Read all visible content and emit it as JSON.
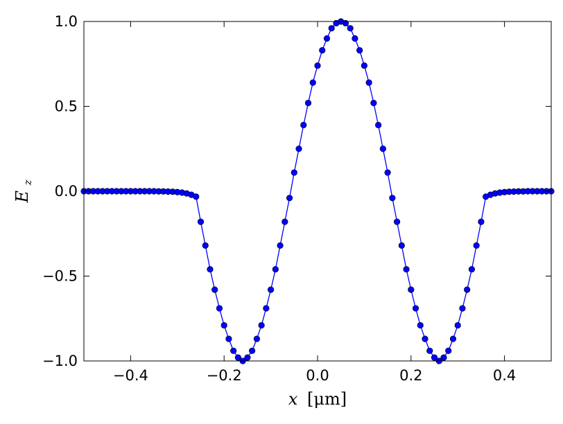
{
  "chart_data": {
    "type": "line",
    "xlabel": "x [μm]",
    "xlabel_var": "x",
    "xlabel_unit": "[μm]",
    "ylabel": "Ez",
    "ylabel_main": "E",
    "ylabel_sub": "z",
    "xlim": [
      -0.5,
      0.5
    ],
    "ylim": [
      -1.0,
      1.0
    ],
    "x_ticks": [
      -0.4,
      -0.2,
      0.0,
      0.2,
      0.4
    ],
    "x_tick_labels": [
      "−0.4",
      "−0.2",
      "0.0",
      "0.2",
      "0.4"
    ],
    "y_ticks": [
      -1.0,
      -0.5,
      0.0,
      0.5,
      1.0
    ],
    "y_tick_labels": [
      "−1.0",
      "−0.5",
      "0.0",
      "0.5",
      "1.0"
    ],
    "grid": false,
    "legend": false,
    "series": [
      {
        "color": "#0000ff",
        "marker": "circle",
        "x": [
          -0.5,
          -0.49,
          -0.48,
          -0.47,
          -0.46,
          -0.45,
          -0.44,
          -0.43,
          -0.42,
          -0.41,
          -0.4,
          -0.39,
          -0.38,
          -0.37,
          -0.36,
          -0.35,
          -0.34,
          -0.33,
          -0.32,
          -0.31,
          -0.3,
          -0.29,
          -0.28,
          -0.27,
          -0.26,
          -0.25,
          -0.24,
          -0.23,
          -0.22,
          -0.21,
          -0.2,
          -0.19,
          -0.18,
          -0.17,
          -0.16,
          -0.15,
          -0.14,
          -0.13,
          -0.12,
          -0.11,
          -0.1,
          -0.09,
          -0.08,
          -0.07,
          -0.06,
          -0.05,
          -0.04,
          -0.03,
          -0.02,
          -0.01,
          0.0,
          0.01,
          0.02,
          0.03,
          0.04,
          0.05,
          0.06,
          0.07,
          0.08,
          0.09,
          0.1,
          0.11,
          0.12,
          0.13,
          0.14,
          0.15,
          0.16,
          0.17,
          0.18,
          0.19,
          0.2,
          0.21,
          0.22,
          0.23,
          0.24,
          0.25,
          0.26,
          0.27,
          0.28,
          0.29,
          0.3,
          0.31,
          0.32,
          0.33,
          0.34,
          0.35,
          0.36,
          0.37,
          0.38,
          0.39,
          0.4,
          0.41,
          0.42,
          0.43,
          0.44,
          0.45,
          0.46,
          0.47,
          0.48,
          0.49,
          0.5
        ],
        "y": [
          0.0,
          0.0,
          0.0,
          0.0,
          0.0,
          0.0,
          0.0,
          0.0,
          0.0,
          0.0,
          0.0,
          0.0,
          0.0,
          0.0,
          0.0,
          0.0,
          -0.001,
          -0.001,
          -0.002,
          -0.003,
          -0.005,
          -0.008,
          -0.013,
          -0.021,
          -0.032,
          -0.18,
          -0.32,
          -0.46,
          -0.58,
          -0.69,
          -0.79,
          -0.87,
          -0.94,
          -0.98,
          -1.0,
          -0.98,
          -0.94,
          -0.87,
          -0.79,
          -0.69,
          -0.58,
          -0.46,
          -0.32,
          -0.18,
          -0.04,
          0.11,
          0.25,
          0.39,
          0.52,
          0.64,
          0.74,
          0.83,
          0.9,
          0.96,
          0.99,
          1.0,
          0.99,
          0.96,
          0.9,
          0.83,
          0.74,
          0.64,
          0.52,
          0.39,
          0.25,
          0.11,
          -0.04,
          -0.18,
          -0.32,
          -0.46,
          -0.58,
          -0.69,
          -0.79,
          -0.87,
          -0.94,
          -0.98,
          -1.0,
          -0.98,
          -0.94,
          -0.87,
          -0.79,
          -0.69,
          -0.58,
          -0.46,
          -0.32,
          -0.18,
          -0.032,
          -0.021,
          -0.013,
          -0.008,
          -0.005,
          -0.003,
          -0.002,
          -0.001,
          -0.001,
          0.0,
          0.0,
          0.0,
          0.0,
          0.0,
          0.0
        ]
      }
    ]
  }
}
